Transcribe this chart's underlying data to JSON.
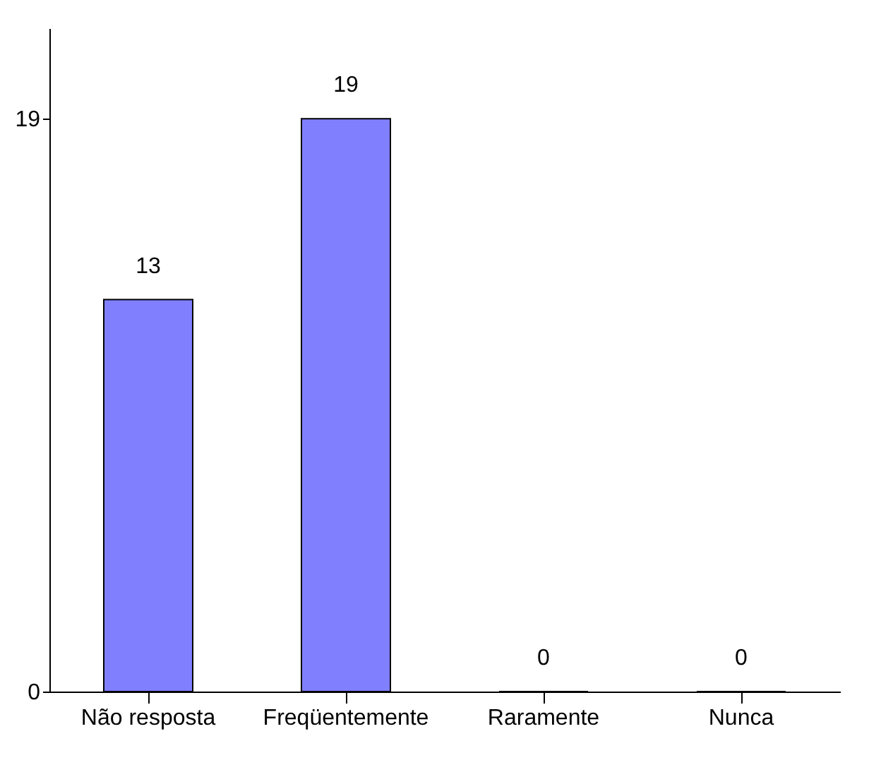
{
  "chart_data": {
    "type": "bar",
    "categories": [
      "Não resposta",
      "Freqüentemente",
      "Raramente",
      "Nunca"
    ],
    "values": [
      13,
      19,
      0,
      0
    ],
    "color": "#8080ff",
    "ylim": [
      0,
      22
    ],
    "yticks": [
      0,
      19
    ],
    "grid": false,
    "data_labels": true
  }
}
